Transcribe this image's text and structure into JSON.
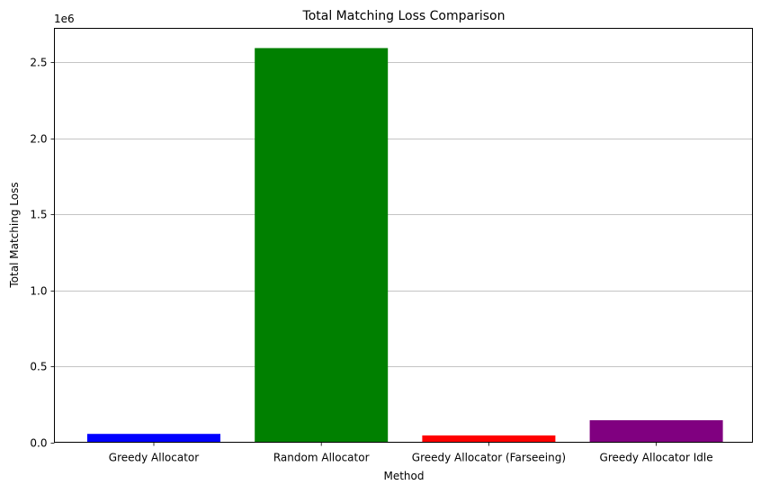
{
  "chart_data": {
    "type": "bar",
    "title": "Total Matching Loss Comparison",
    "xlabel": "Method",
    "ylabel": "Total Matching Loss",
    "y_offset_label": "1e6",
    "categories": [
      "Greedy Allocator",
      "Random Allocator",
      "Greedy Allocator (Farseeing)",
      "Greedy Allocator Idle"
    ],
    "values": [
      55000,
      2595000,
      45000,
      145000
    ],
    "colors": [
      "#0000ff",
      "#008000",
      "#ff0000",
      "#800080"
    ],
    "ylim": [
      0,
      2725000
    ],
    "yticks": [
      0,
      500000,
      1000000,
      1500000,
      2000000,
      2500000
    ],
    "ytick_labels": [
      "0.0",
      "0.5",
      "1.0",
      "1.5",
      "2.0",
      "2.5"
    ],
    "grid": "y-axis",
    "legend": "none"
  }
}
